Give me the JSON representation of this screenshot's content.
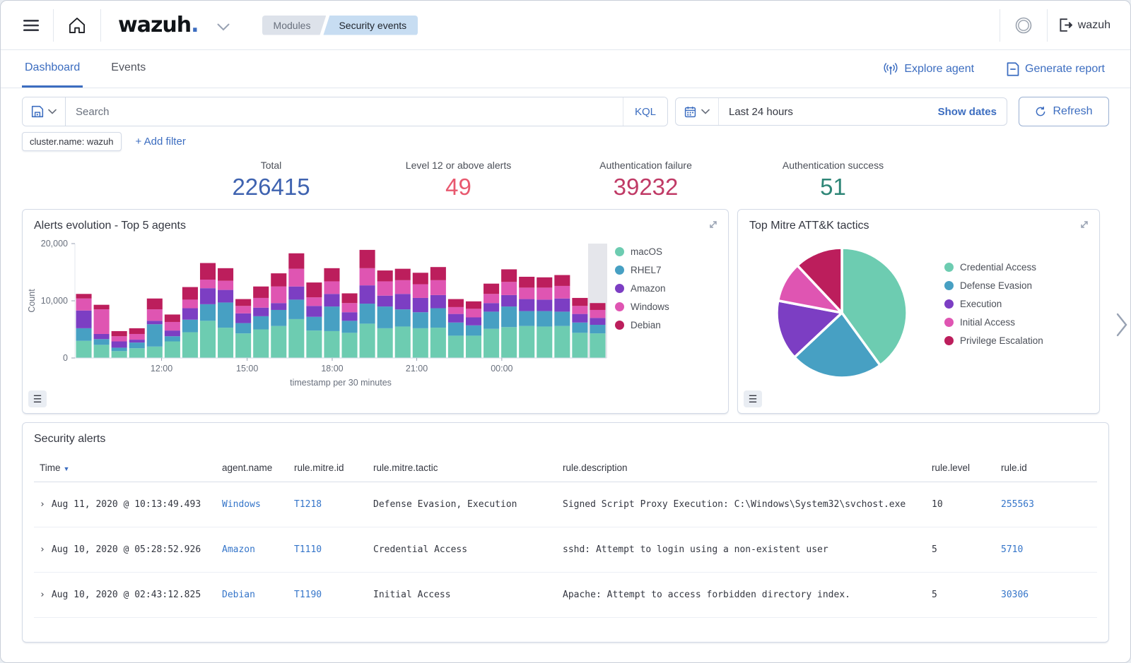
{
  "header": {
    "brand": "wazuh",
    "brand_dot": ".",
    "breadcrumbs": [
      "Modules",
      "Security events"
    ],
    "user": "wazuh"
  },
  "tabs": {
    "dashboard": "Dashboard",
    "events": "Events"
  },
  "actions": {
    "explore_agent": "Explore agent",
    "generate_report": "Generate report"
  },
  "query_bar": {
    "search_placeholder": "Search",
    "kql_label": "KQL",
    "time_range": "Last 24 hours",
    "show_dates_label": "Show dates",
    "refresh_label": "Refresh"
  },
  "filters": {
    "chip": "cluster.name: wazuh",
    "add_filter_label": "+ Add filter"
  },
  "stats": [
    {
      "label": "Total",
      "value": "226415",
      "color": "#3f63b0"
    },
    {
      "label": "Level 12 or above alerts",
      "value": "49",
      "color": "#e8596f"
    },
    {
      "label": "Authentication failure",
      "value": "39232",
      "color": "#c03a66"
    },
    {
      "label": "Authentication success",
      "value": "51",
      "color": "#2e8677"
    }
  ],
  "icons": {
    "expand": "↗",
    "list": "☰",
    "chevron_right": "›",
    "sort_desc": "▼"
  },
  "chart_data": [
    {
      "type": "bar",
      "stacked": true,
      "title": "Alerts evolution - Top 5 agents",
      "xlabel": "timestamp per 30 minutes",
      "ylabel": "Count",
      "ylim": [
        0,
        20000
      ],
      "yticks": [
        0,
        10000,
        20000
      ],
      "xticks": [
        {
          "label": "12:00",
          "pos": 0.163
        },
        {
          "label": "15:00",
          "pos": 0.324
        },
        {
          "label": "18:00",
          "pos": 0.484
        },
        {
          "label": "21:00",
          "pos": 0.643
        },
        {
          "label": "00:00",
          "pos": 0.803
        }
      ],
      "highlight_last_bucket": true,
      "series": [
        {
          "name": "macOS",
          "color": "#6dccb1",
          "values": [
            3000,
            2300,
            1200,
            1700,
            2000,
            2900,
            4500,
            6500,
            5300,
            4300,
            5000,
            5600,
            6800,
            4800,
            4700,
            4400,
            6000,
            5200,
            5500,
            5200,
            5300,
            3900,
            3900,
            5100,
            5400,
            5600,
            5500,
            5600,
            4400,
            4300
          ]
        },
        {
          "name": "RHEL7",
          "color": "#47a0c3",
          "values": [
            2200,
            1000,
            600,
            1000,
            3900,
            900,
            2200,
            2900,
            4400,
            1800,
            2300,
            2800,
            3400,
            2400,
            4300,
            2100,
            3500,
            3800,
            3000,
            2800,
            3400,
            2300,
            1800,
            3000,
            3600,
            2600,
            2700,
            2500,
            1800,
            1500
          ]
        },
        {
          "name": "Amazon",
          "color": "#7c3ec3",
          "values": [
            3100,
            900,
            1100,
            500,
            600,
            1000,
            2000,
            2800,
            2200,
            1700,
            1500,
            1200,
            2300,
            1900,
            2200,
            1500,
            3200,
            1900,
            2700,
            2500,
            2300,
            1500,
            1400,
            1500,
            2000,
            2100,
            2000,
            2300,
            1500,
            1200
          ]
        },
        {
          "name": "Windows",
          "color": "#df55b2",
          "values": [
            2100,
            4300,
            900,
            1000,
            2000,
            1500,
            1500,
            1500,
            1600,
            1300,
            1700,
            2900,
            3100,
            1500,
            2200,
            1600,
            3000,
            2500,
            2400,
            2400,
            2600,
            1200,
            1500,
            1600,
            2300,
            2000,
            2100,
            2200,
            1400,
            1400
          ]
        },
        {
          "name": "Debian",
          "color": "#bc1e5c",
          "values": [
            800,
            800,
            900,
            1000,
            1900,
            1300,
            2200,
            2900,
            2200,
            1200,
            2000,
            2300,
            2700,
            2600,
            2300,
            1700,
            3200,
            1900,
            2000,
            2000,
            2300,
            1400,
            1300,
            1800,
            2200,
            1900,
            1800,
            1900,
            1400,
            1200
          ]
        }
      ]
    },
    {
      "type": "pie",
      "title": "Top Mitre ATT&K tactics",
      "legend_position": "right",
      "slices": [
        {
          "label": "Credential Access",
          "value": 40,
          "color": "#6dccb1"
        },
        {
          "label": "Defense Evasion",
          "value": 23,
          "color": "#47a0c3"
        },
        {
          "label": "Execution",
          "value": 15,
          "color": "#7c3ec3"
        },
        {
          "label": "Initial Access",
          "value": 10,
          "color": "#df55b2"
        },
        {
          "label": "Privilege Escalation",
          "value": 12,
          "color": "#bc1e5c"
        }
      ]
    }
  ],
  "alerts_table": {
    "title": "Security alerts",
    "columns": [
      "Time",
      "agent.name",
      "rule.mitre.id",
      "rule.mitre.tactic",
      "rule.description",
      "rule.level",
      "rule.id"
    ],
    "rows": [
      {
        "time": "Aug 11, 2020 @ 10:13:49.493",
        "agent": "Windows",
        "mitre_id": "T1218",
        "tactic": "Defense Evasion, Execution",
        "description": "Signed Script Proxy Execution: C:\\Windows\\System32\\svchost.exe",
        "level": "10",
        "rule_id": "255563"
      },
      {
        "time": "Aug 10, 2020 @ 05:28:52.926",
        "agent": "Amazon",
        "mitre_id": "T1110",
        "tactic": "Credential Access",
        "description": "sshd: Attempt to login using a non-existent user",
        "level": "5",
        "rule_id": "5710"
      },
      {
        "time": "Aug 10, 2020 @ 02:43:12.825",
        "agent": "Debian",
        "mitre_id": "T1190",
        "tactic": "Initial Access",
        "description": "Apache: Attempt to access forbidden directory index.",
        "level": "5",
        "rule_id": "30306"
      }
    ]
  }
}
